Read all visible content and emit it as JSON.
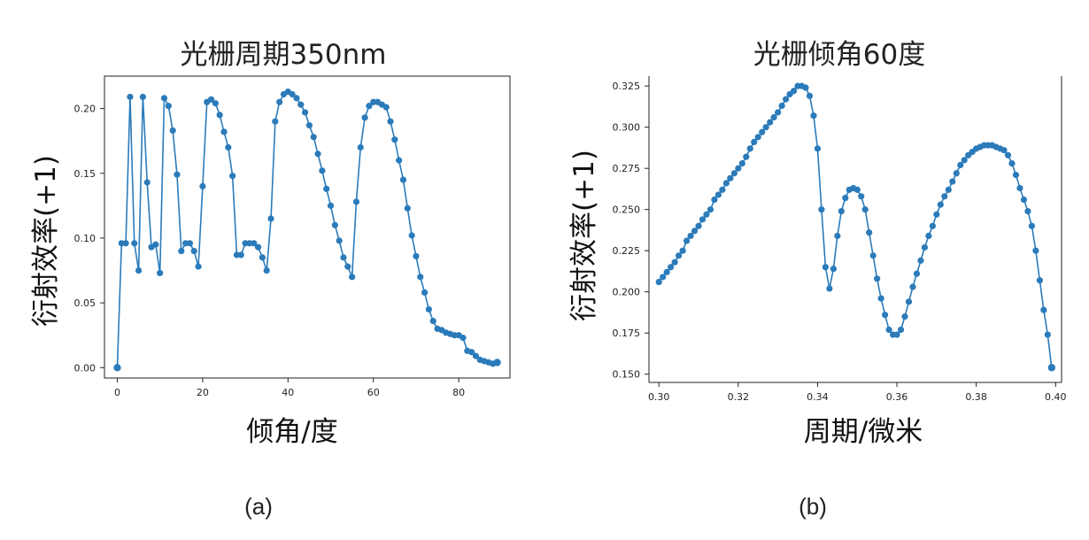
{
  "captions": {
    "a": "(a)",
    "b": "(b)"
  },
  "chart_data": [
    {
      "type": "line",
      "title": "光栅周期350nm",
      "xlabel": "倾角/度",
      "ylabel": "衍射效率(+1)",
      "xlim": [
        -3,
        92
      ],
      "ylim": [
        -0.008,
        0.225
      ],
      "xticks": [
        0,
        20,
        40,
        60,
        80
      ],
      "xtick_labels": [
        "0",
        "20",
        "40",
        "60",
        "80"
      ],
      "yticks": [
        0.0,
        0.05,
        0.1,
        0.15,
        0.2
      ],
      "ytick_labels": [
        "0.00",
        "0.05",
        "0.10",
        "0.15",
        "0.20"
      ],
      "grid": false,
      "color": "#2b7bba",
      "series": [
        {
          "x": [
            0,
            1,
            2,
            3,
            4,
            5,
            6,
            7,
            8,
            9,
            10,
            11,
            12,
            13,
            14,
            15,
            16,
            17,
            18,
            19,
            20,
            21,
            22,
            23,
            24,
            25,
            26,
            27,
            28,
            29,
            30,
            31,
            32,
            33,
            34,
            35,
            36,
            37,
            38,
            39,
            40,
            41,
            42,
            43,
            44,
            45,
            46,
            47,
            48,
            49,
            50,
            51,
            52,
            53,
            54,
            55,
            56,
            57,
            58,
            59,
            60,
            61,
            62,
            63,
            64,
            65,
            66,
            67,
            68,
            69,
            70,
            71,
            72,
            73,
            74,
            75,
            76,
            77,
            78,
            79,
            80,
            81,
            82,
            83,
            84,
            85,
            86,
            87,
            88,
            89
          ],
          "y": [
            0.0,
            0.096,
            0.096,
            0.209,
            0.096,
            0.075,
            0.209,
            0.143,
            0.093,
            0.095,
            0.073,
            0.208,
            0.202,
            0.183,
            0.149,
            0.09,
            0.096,
            0.096,
            0.09,
            0.078,
            0.14,
            0.205,
            0.207,
            0.204,
            0.195,
            0.182,
            0.17,
            0.148,
            0.087,
            0.087,
            0.096,
            0.096,
            0.096,
            0.093,
            0.085,
            0.075,
            0.115,
            0.19,
            0.205,
            0.211,
            0.213,
            0.211,
            0.208,
            0.203,
            0.197,
            0.187,
            0.178,
            0.165,
            0.152,
            0.138,
            0.125,
            0.11,
            0.098,
            0.085,
            0.078,
            0.07,
            0.128,
            0.17,
            0.193,
            0.202,
            0.205,
            0.205,
            0.203,
            0.201,
            0.19,
            0.176,
            0.16,
            0.145,
            0.123,
            0.102,
            0.086,
            0.07,
            0.058,
            0.045,
            0.036,
            0.03,
            0.029,
            0.027,
            0.026,
            0.025,
            0.025,
            0.023,
            0.013,
            0.012,
            0.009,
            0.006,
            0.005,
            0.004,
            0.003,
            0.004
          ]
        }
      ]
    },
    {
      "type": "line",
      "title": "光栅倾角60度",
      "xlabel": "周期/微米",
      "ylabel": "衍射效率(+1)",
      "xlim": [
        0.2975,
        0.4015
      ],
      "ylim": [
        0.145,
        0.331
      ],
      "xticks": [
        0.3,
        0.32,
        0.34,
        0.36,
        0.38,
        0.4
      ],
      "xtick_labels": [
        "0.30",
        "0.32",
        "0.34",
        "0.36",
        "0.38",
        "0.40"
      ],
      "yticks": [
        0.15,
        0.175,
        0.2,
        0.225,
        0.25,
        0.275,
        0.3,
        0.325
      ],
      "ytick_labels": [
        "0.150",
        "0.175",
        "0.200",
        "0.225",
        "0.250",
        "0.275",
        "0.300",
        "0.325"
      ],
      "grid": false,
      "color": "#2b7bba",
      "series": [
        {
          "x": [
            0.3,
            0.301,
            0.302,
            0.303,
            0.304,
            0.305,
            0.306,
            0.307,
            0.308,
            0.309,
            0.31,
            0.311,
            0.312,
            0.313,
            0.314,
            0.315,
            0.316,
            0.317,
            0.318,
            0.319,
            0.32,
            0.321,
            0.322,
            0.323,
            0.324,
            0.325,
            0.326,
            0.327,
            0.328,
            0.329,
            0.33,
            0.331,
            0.332,
            0.333,
            0.334,
            0.335,
            0.336,
            0.337,
            0.338,
            0.339,
            0.34,
            0.341,
            0.342,
            0.343,
            0.344,
            0.345,
            0.346,
            0.347,
            0.348,
            0.349,
            0.35,
            0.351,
            0.352,
            0.353,
            0.354,
            0.355,
            0.356,
            0.357,
            0.358,
            0.359,
            0.36,
            0.361,
            0.362,
            0.363,
            0.364,
            0.365,
            0.366,
            0.367,
            0.368,
            0.369,
            0.37,
            0.371,
            0.372,
            0.373,
            0.374,
            0.375,
            0.376,
            0.377,
            0.378,
            0.379,
            0.38,
            0.381,
            0.382,
            0.383,
            0.384,
            0.385,
            0.386,
            0.387,
            0.388,
            0.389,
            0.39,
            0.391,
            0.392,
            0.393,
            0.394,
            0.395,
            0.396,
            0.397,
            0.398,
            0.399
          ],
          "y": [
            0.206,
            0.209,
            0.212,
            0.215,
            0.218,
            0.222,
            0.225,
            0.231,
            0.234,
            0.237,
            0.24,
            0.244,
            0.247,
            0.25,
            0.256,
            0.259,
            0.262,
            0.266,
            0.269,
            0.272,
            0.275,
            0.278,
            0.282,
            0.287,
            0.291,
            0.294,
            0.297,
            0.3,
            0.303,
            0.306,
            0.309,
            0.313,
            0.317,
            0.32,
            0.322,
            0.325,
            0.325,
            0.324,
            0.319,
            0.307,
            0.287,
            0.25,
            0.215,
            0.202,
            0.214,
            0.234,
            0.249,
            0.257,
            0.262,
            0.263,
            0.262,
            0.258,
            0.25,
            0.236,
            0.222,
            0.208,
            0.196,
            0.186,
            0.177,
            0.174,
            0.174,
            0.177,
            0.185,
            0.194,
            0.203,
            0.211,
            0.219,
            0.227,
            0.234,
            0.24,
            0.247,
            0.253,
            0.258,
            0.262,
            0.267,
            0.272,
            0.277,
            0.28,
            0.283,
            0.285,
            0.287,
            0.288,
            0.289,
            0.289,
            0.289,
            0.288,
            0.287,
            0.286,
            0.283,
            0.278,
            0.271,
            0.263,
            0.256,
            0.249,
            0.24,
            0.225,
            0.207,
            0.189,
            0.174,
            0.154
          ]
        }
      ]
    }
  ]
}
